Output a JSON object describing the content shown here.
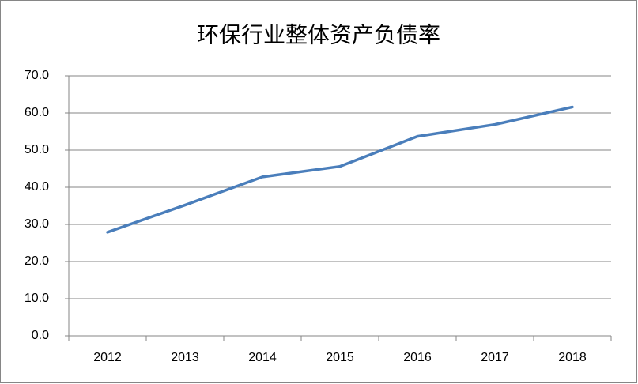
{
  "chart_data": {
    "type": "line",
    "title": "环保行业整体资产负债率",
    "categories": [
      "2012",
      "2013",
      "2014",
      "2015",
      "2016",
      "2017",
      "2018"
    ],
    "values": [
      27.9,
      35.2,
      42.8,
      45.6,
      53.7,
      56.9,
      61.6
    ],
    "color": "#4a7ebb",
    "ylim": [
      0,
      70
    ],
    "yticks": [
      {
        "value": 0,
        "label": "0.0"
      },
      {
        "value": 10,
        "label": "10.0"
      },
      {
        "value": 20,
        "label": "20.0"
      },
      {
        "value": 30,
        "label": "30.0"
      },
      {
        "value": 40,
        "label": "40.0"
      },
      {
        "value": 50,
        "label": "50.0"
      },
      {
        "value": 60,
        "label": "60.0"
      },
      {
        "value": 70,
        "label": "70.0"
      }
    ],
    "grid": true
  }
}
